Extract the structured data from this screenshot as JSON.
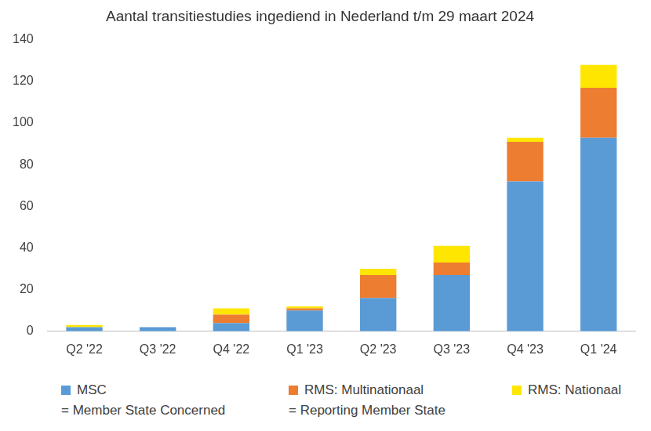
{
  "chart_data": {
    "type": "bar",
    "title": "Aantal transitiestudies ingediend in Nederland t/m 29 maart 2024",
    "categories": [
      "Q2 '22",
      "Q3 '22",
      "Q4 '22",
      "Q1 '23",
      "Q2 '23",
      "Q3 '23",
      "Q4 '23",
      "Q1 '24"
    ],
    "series": [
      {
        "name": "MSC",
        "color": "#5B9BD5",
        "values": [
          2,
          2,
          4,
          10,
          16,
          27,
          72,
          93
        ]
      },
      {
        "name": "RMS: Multinationaal",
        "color": "#ED7D31",
        "values": [
          0,
          0,
          4,
          1,
          11,
          6,
          19,
          24
        ]
      },
      {
        "name": "RMS: Nationaal",
        "color": "#FFE600",
        "values": [
          1,
          0,
          3,
          1,
          3,
          8,
          2,
          11
        ]
      }
    ],
    "annotations": [
      "= Member State Concerned",
      "= Reporting Member State"
    ],
    "stacked": true,
    "legend": "bottom",
    "grid": false,
    "ylim": [
      0,
      140
    ],
    "yticks": [
      0,
      20,
      40,
      60,
      80,
      100,
      120,
      140
    ]
  }
}
